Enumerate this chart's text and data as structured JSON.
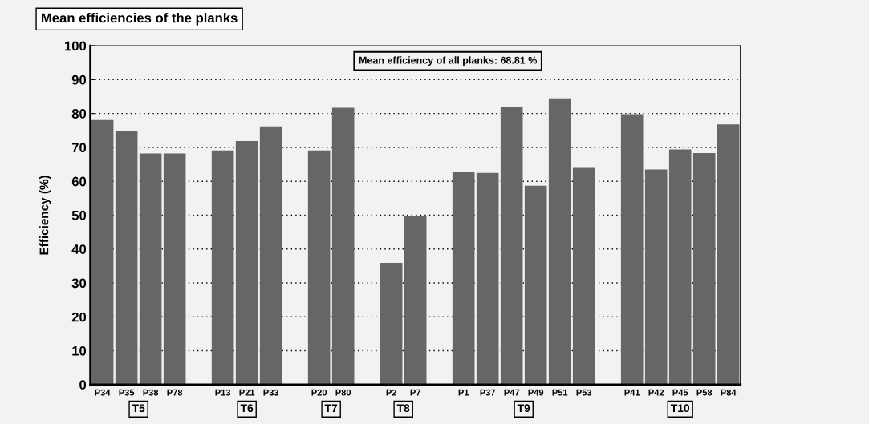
{
  "chart_data": {
    "type": "bar",
    "title": "Mean efficiencies of the planks",
    "ylabel": "Efficiency (%)",
    "categories": [
      "P34",
      "P35",
      "P38",
      "P78",
      null,
      "P13",
      "P21",
      "P33",
      null,
      "P20",
      "P80",
      null,
      "P2",
      "P7",
      null,
      "P1",
      "P37",
      "P47",
      "P49",
      "P51",
      "P53",
      null,
      "P41",
      "P42",
      "P45",
      "P58",
      "P84"
    ],
    "values": [
      78.1,
      74.8,
      68.2,
      68.2,
      null,
      69.1,
      71.9,
      76.2,
      null,
      69.1,
      81.7,
      null,
      35.9,
      49.8,
      null,
      62.7,
      62.5,
      82.0,
      58.7,
      84.5,
      64.2,
      null,
      79.8,
      63.5,
      69.4,
      68.3,
      76.8
    ],
    "color": "#666666",
    "ylim": [
      0,
      100
    ],
    "yticks": [
      0,
      10,
      20,
      30,
      40,
      50,
      60,
      70,
      80,
      90,
      100
    ],
    "grid": "y",
    "annotations": [
      "Mean efficiency of all planks: 68.81 %",
      "T5",
      "T6",
      "T7",
      "T8",
      "T9",
      "T10"
    ]
  }
}
